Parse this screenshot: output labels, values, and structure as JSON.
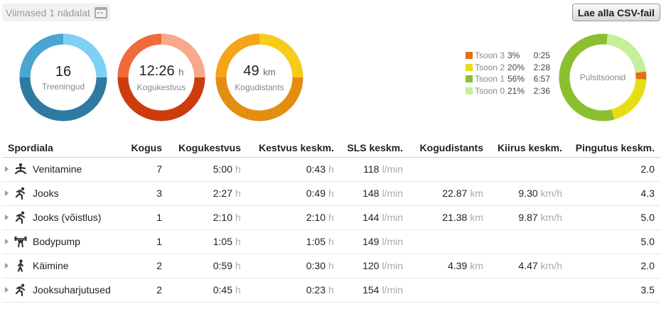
{
  "filters": {
    "period_label": "Viimased 1 nädalat",
    "calendar_icon": "calendar-icon"
  },
  "actions": {
    "csv_button": "Lae alla CSV-fail"
  },
  "summary": {
    "trainings": {
      "value": "16",
      "unit": "",
      "caption": "Treeningud"
    },
    "duration": {
      "value": "12:26",
      "unit": "h",
      "caption": "Kogukestvus"
    },
    "distance": {
      "value": "49",
      "unit": "km",
      "caption": "Kogudistants"
    }
  },
  "zones": {
    "label": "Pulsitsoonid",
    "items": [
      {
        "name": "Tsoon 3",
        "percent": "3%",
        "time": "0:25",
        "color": "#e37010",
        "fraction": 0.03
      },
      {
        "name": "Tsoon 2",
        "percent": "20%",
        "time": "2:28",
        "color": "#e8dc14",
        "fraction": 0.2
      },
      {
        "name": "Tsoon 1",
        "percent": "56%",
        "time": "6:57",
        "color": "#8cbf2f",
        "fraction": 0.56
      },
      {
        "name": "Tsoon 0",
        "percent": "21%",
        "time": "2:36",
        "color": "#c6ef99",
        "fraction": 0.21
      }
    ]
  },
  "table": {
    "headers": [
      "Spordiala",
      "Kogus",
      "Kogukestvus",
      "Kestvus keskm.",
      "SLS keskm.",
      "Kogudistants",
      "Kiirus keskm.",
      "Pingutus keskm."
    ],
    "units": {
      "hours": "h",
      "bpm": "l/min",
      "km": "km",
      "speed": "km/h"
    },
    "rows": [
      {
        "icon": "stretching-icon",
        "sport": "Venitamine",
        "count": "7",
        "total": "5:00",
        "avg": "0:43",
        "hr": "118",
        "dist": "",
        "speed": "",
        "effort": "2.0"
      },
      {
        "icon": "running-icon",
        "sport": "Jooks",
        "count": "3",
        "total": "2:27",
        "avg": "0:49",
        "hr": "148",
        "dist": "22.87",
        "speed": "9.30",
        "effort": "4.3"
      },
      {
        "icon": "running-icon",
        "sport": "Jooks (võistlus)",
        "count": "1",
        "total": "2:10",
        "avg": "2:10",
        "hr": "144",
        "dist": "21.38",
        "speed": "9.87",
        "effort": "5.0"
      },
      {
        "icon": "weightlifting-icon",
        "sport": "Bodypump",
        "count": "1",
        "total": "1:05",
        "avg": "1:05",
        "hr": "149",
        "dist": "",
        "speed": "",
        "effort": "5.0"
      },
      {
        "icon": "walking-icon",
        "sport": "Käimine",
        "count": "2",
        "total": "0:59",
        "avg": "0:30",
        "hr": "120",
        "dist": "4.39",
        "speed": "4.47",
        "effort": "2.0"
      },
      {
        "icon": "running-icon",
        "sport": "Jooksuharjutused",
        "count": "2",
        "total": "0:45",
        "avg": "0:23",
        "hr": "154",
        "dist": "",
        "speed": "",
        "effort": "3.5"
      }
    ]
  }
}
